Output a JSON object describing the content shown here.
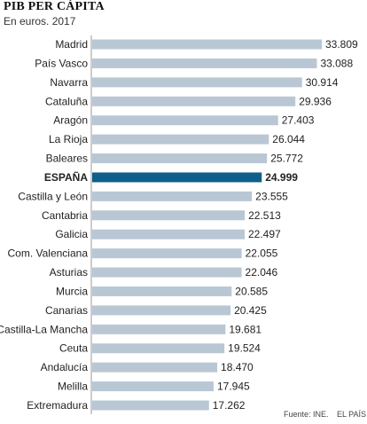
{
  "header": {
    "title": "PIB PER CÁPITA",
    "subtitle": "En euros. 2017"
  },
  "footer": {
    "source": "Fuente: INE.",
    "brand": "EL PAÍS"
  },
  "colors": {
    "bar": "#b9c7d5",
    "highlight_bar": "#0e5f8a",
    "text": "#222222",
    "axis": "#999999"
  },
  "chart_data": {
    "type": "bar",
    "orientation": "horizontal",
    "categories": [
      "Madrid",
      "País Vasco",
      "Navarra",
      "Cataluña",
      "Aragón",
      "La Rioja",
      "Baleares",
      "ESPAÑA",
      "Castilla y León",
      "Cantabria",
      "Galicia",
      "Com. Valenciana",
      "Asturias",
      "Murcia",
      "Canarias",
      "Castilla-La Mancha",
      "Ceuta",
      "Andalucía",
      "Melilla",
      "Extremadura"
    ],
    "values": [
      33809,
      33088,
      30914,
      29936,
      27403,
      26044,
      25772,
      24999,
      23555,
      22513,
      22497,
      22055,
      22046,
      20585,
      20425,
      19681,
      19524,
      18470,
      17945,
      17262
    ],
    "value_labels": [
      "33.809",
      "33.088",
      "30.914",
      "29.936",
      "27.403",
      "26.044",
      "25.772",
      "24.999",
      "23.555",
      "22.513",
      "22.497",
      "22.055",
      "22.046",
      "20.585",
      "20.425",
      "19.681",
      "19.524",
      "18.470",
      "17.945",
      "17.262"
    ],
    "highlight": "ESPAÑA",
    "title": "PIB PER CÁPITA",
    "subtitle": "En euros. 2017",
    "xlim": [
      0,
      33809
    ],
    "grid": false,
    "legend": "none"
  }
}
